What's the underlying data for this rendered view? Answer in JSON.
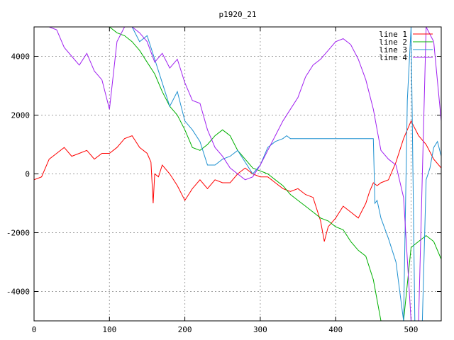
{
  "chart_data": {
    "type": "line",
    "title": "p1920_21",
    "xlim": [
      0,
      540
    ],
    "ylim": [
      -5000,
      5000
    ],
    "xticks": [
      0,
      100,
      200,
      300,
      400,
      500
    ],
    "yticks": [
      -4000,
      -2000,
      0,
      2000,
      4000
    ],
    "grid": true,
    "legend_position": "top-right",
    "series": [
      {
        "name": "line 1",
        "color": "#ff0000",
        "x": [
          0,
          10,
          20,
          30,
          40,
          50,
          60,
          70,
          80,
          90,
          100,
          110,
          120,
          130,
          140,
          150,
          155,
          158,
          160,
          165,
          170,
          180,
          190,
          200,
          205,
          210,
          220,
          230,
          240,
          250,
          260,
          270,
          280,
          290,
          300,
          310,
          320,
          330,
          340,
          350,
          360,
          370,
          380,
          385,
          390,
          400,
          410,
          420,
          430,
          440,
          445,
          450,
          455,
          460,
          470,
          480,
          490,
          500,
          510,
          520,
          530,
          540
        ],
        "y": [
          -200,
          -100,
          500,
          700,
          900,
          600,
          700,
          800,
          500,
          700,
          700,
          900,
          1200,
          1300,
          900,
          700,
          400,
          -1000,
          0,
          -100,
          300,
          0,
          -400,
          -900,
          -700,
          -500,
          -200,
          -500,
          -200,
          -300,
          -300,
          0,
          200,
          0,
          -100,
          -100,
          -300,
          -500,
          -600,
          -500,
          -700,
          -800,
          -1600,
          -2300,
          -1800,
          -1500,
          -1100,
          -1300,
          -1500,
          -1000,
          -600,
          -300,
          -400,
          -300,
          -200,
          400,
          1200,
          1800,
          1300,
          1000,
          500,
          200
        ]
      },
      {
        "name": "line 2",
        "color": "#00b000",
        "x": [
          0,
          10,
          20,
          30,
          40,
          50,
          60,
          70,
          80,
          90,
          100,
          110,
          120,
          130,
          140,
          150,
          160,
          170,
          180,
          190,
          200,
          210,
          220,
          230,
          240,
          250,
          260,
          270,
          280,
          290,
          300,
          310,
          320,
          330,
          340,
          350,
          360,
          370,
          380,
          390,
          400,
          410,
          420,
          430,
          440,
          450,
          460,
          470,
          480,
          490,
          500,
          510,
          520,
          530,
          540
        ],
        "y": [
          5000,
          5000,
          5000,
          5000,
          5000,
          5000,
          5000,
          5000,
          5000,
          5000,
          5000,
          4800,
          4700,
          4500,
          4200,
          3800,
          3400,
          2800,
          2300,
          2000,
          1500,
          900,
          800,
          1000,
          1300,
          1500,
          1300,
          800,
          500,
          200,
          100,
          0,
          -200,
          -400,
          -700,
          -900,
          -1100,
          -1300,
          -1500,
          -1600,
          -1800,
          -1900,
          -2300,
          -2600,
          -2800,
          -3600,
          -5000,
          -5000,
          -5000,
          -5000,
          -2500,
          -2300,
          -2100,
          -2300,
          -2900
        ]
      },
      {
        "name": "line 3",
        "color": "#1e90d0",
        "x": [
          0,
          10,
          20,
          30,
          40,
          50,
          60,
          70,
          80,
          90,
          100,
          110,
          120,
          130,
          140,
          150,
          160,
          170,
          180,
          190,
          200,
          210,
          220,
          230,
          240,
          250,
          260,
          270,
          280,
          290,
          300,
          310,
          320,
          330,
          335,
          340,
          345,
          400,
          450,
          452,
          455,
          460,
          470,
          480,
          490,
          495,
          500,
          505,
          510,
          515,
          520,
          525,
          530,
          535,
          540
        ],
        "y": [
          5000,
          5000,
          5000,
          5000,
          5000,
          5000,
          5000,
          5000,
          5000,
          5000,
          5000,
          5000,
          5000,
          5000,
          4500,
          4700,
          3900,
          3100,
          2300,
          2800,
          1800,
          1500,
          1100,
          300,
          300,
          500,
          600,
          800,
          400,
          0,
          300,
          900,
          1100,
          1200,
          1300,
          1200,
          1200,
          1200,
          1200,
          -1000,
          -900,
          -1500,
          -2200,
          -3000,
          -5000,
          2500,
          5000,
          -5000,
          -5000,
          -5000,
          -200,
          200,
          900,
          1100,
          600
        ]
      },
      {
        "name": "line 4",
        "color": "#a020f0",
        "x": [
          0,
          10,
          20,
          30,
          40,
          50,
          60,
          70,
          80,
          90,
          100,
          110,
          120,
          130,
          140,
          150,
          160,
          170,
          180,
          190,
          200,
          210,
          220,
          230,
          240,
          250,
          260,
          270,
          280,
          290,
          300,
          310,
          320,
          330,
          340,
          350,
          360,
          370,
          380,
          390,
          400,
          410,
          420,
          430,
          440,
          450,
          455,
          460,
          470,
          480,
          490,
          500,
          505,
          510,
          520,
          530,
          540
        ],
        "y": [
          5000,
          5000,
          5000,
          4900,
          4300,
          4000,
          3700,
          4100,
          3500,
          3200,
          2200,
          4500,
          5000,
          5000,
          4800,
          4500,
          3800,
          4100,
          3600,
          3900,
          3100,
          2500,
          2400,
          1500,
          900,
          600,
          200,
          0,
          -200,
          -100,
          300,
          800,
          1300,
          1800,
          2200,
          2600,
          3300,
          3700,
          3900,
          4200,
          4500,
          4600,
          4400,
          3900,
          3200,
          2200,
          1500,
          800,
          500,
          300,
          -800,
          -5000,
          -5000,
          -5000,
          5000,
          4500,
          1800
        ]
      }
    ]
  }
}
